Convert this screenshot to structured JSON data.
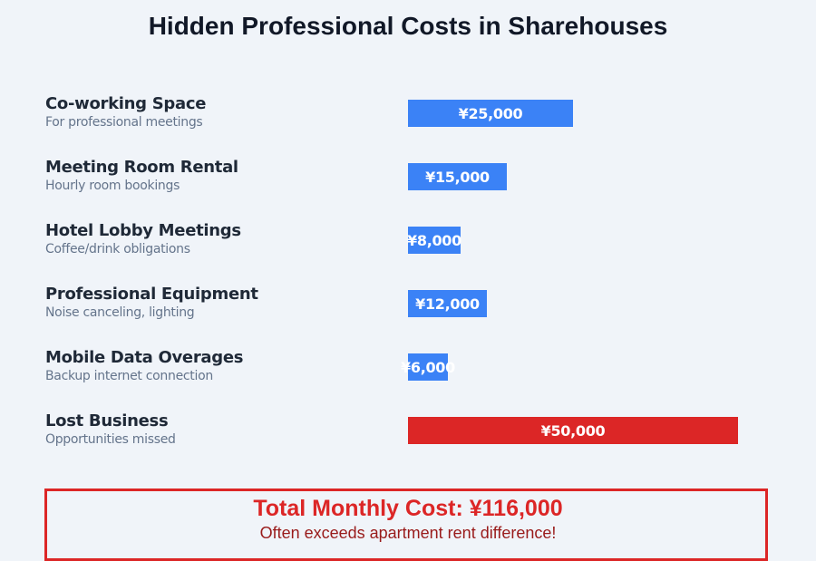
{
  "title": "Hidden Professional Costs in Sharehouses",
  "rows": [
    {
      "label": "Co-working Space",
      "sub": "For professional meetings",
      "value_label": "¥25,000",
      "value": 25000,
      "color": "#3b82f6"
    },
    {
      "label": "Meeting Room Rental",
      "sub": "Hourly room bookings",
      "value_label": "¥15,000",
      "value": 15000,
      "color": "#3b82f6"
    },
    {
      "label": "Hotel Lobby Meetings",
      "sub": "Coffee/drink obligations",
      "value_label": "¥8,000",
      "value": 8000,
      "color": "#3b82f6"
    },
    {
      "label": "Professional Equipment",
      "sub": "Noise canceling, lighting",
      "value_label": "¥12,000",
      "value": 12000,
      "color": "#3b82f6"
    },
    {
      "label": "Mobile Data Overages",
      "sub": "Backup internet connection",
      "value_label": "¥6,000",
      "value": 6000,
      "color": "#3b82f6"
    },
    {
      "label": "Lost Business",
      "sub": "Opportunities missed",
      "value_label": "¥50,000",
      "value": 50000,
      "color": "#dc2626"
    }
  ],
  "total": {
    "title": "Total Monthly Cost: ¥116,000",
    "subtitle": "Often exceeds apartment rent difference!"
  },
  "chart_data": {
    "type": "bar",
    "orientation": "horizontal",
    "title": "Hidden Professional Costs in Sharehouses",
    "categories": [
      "Co-working Space",
      "Meeting Room Rental",
      "Hotel Lobby Meetings",
      "Professional Equipment",
      "Mobile Data Overages",
      "Lost Business"
    ],
    "subtitles": [
      "For professional meetings",
      "Hourly room bookings",
      "Coffee/drink obligations",
      "Noise canceling, lighting",
      "Backup internet connection",
      "Opportunities missed"
    ],
    "values": [
      25000,
      15000,
      8000,
      12000,
      6000,
      50000
    ],
    "value_labels": [
      "¥25,000",
      "¥15,000",
      "¥8,000",
      "¥12,000",
      "¥6,000",
      "¥50,000"
    ],
    "colors": [
      "#3b82f6",
      "#3b82f6",
      "#3b82f6",
      "#3b82f6",
      "#3b82f6",
      "#dc2626"
    ],
    "unit": "JPY per month",
    "xlabel": "",
    "ylabel": "",
    "grid": false,
    "legend": "none",
    "annotation": "Total Monthly Cost: ¥116,000 — Often exceeds apartment rent difference!"
  }
}
